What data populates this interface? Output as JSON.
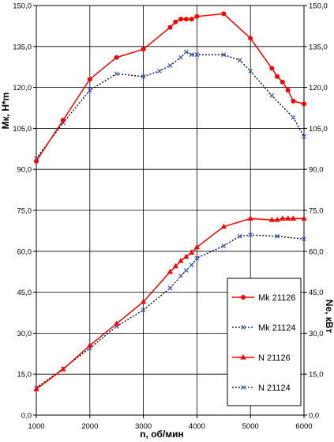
{
  "chart_data": {
    "type": "line",
    "xlabel": "n, об/мин",
    "ylabel_left": "Mк, Н*m",
    "ylabel_right": "Ne, кВт",
    "xlim": [
      1000,
      6000
    ],
    "ylim": [
      0,
      150
    ],
    "x_ticks": [
      "1000",
      "2000",
      "3000",
      "4000",
      "5000",
      "6000"
    ],
    "y_ticks": [
      "0,0",
      "15,0",
      "30,0",
      "45,0",
      "60,0",
      "75,0",
      "90,0",
      "105,0",
      "120,0",
      "135,0",
      "150,0"
    ],
    "grid": true,
    "legend_position": "bottom-right",
    "series": [
      {
        "name": "Mk 21126",
        "color": "#ff0000",
        "line": "solid",
        "marker": "circle",
        "x": [
          1000,
          1500,
          2000,
          2500,
          3000,
          3500,
          3600,
          3700,
          3800,
          3900,
          4000,
          4500,
          5000,
          5400,
          5500,
          5600,
          5700,
          5800,
          6000
        ],
        "y": [
          93,
          108,
          123,
          131,
          134,
          142,
          144,
          145,
          145,
          145,
          146,
          147,
          138,
          127,
          124,
          122,
          119,
          115,
          114
        ]
      },
      {
        "name": "Mk 21124",
        "color": "#3355cc",
        "line": "dotted",
        "marker": "x",
        "x": [
          1000,
          1500,
          2000,
          2500,
          3000,
          3300,
          3500,
          3700,
          3800,
          3900,
          4000,
          4500,
          4800,
          5000,
          5400,
          5800,
          6000
        ],
        "y": [
          94,
          107,
          119,
          125,
          124,
          126,
          128,
          131,
          133,
          132,
          132,
          132,
          130,
          126,
          117,
          109,
          102
        ]
      },
      {
        "name": "N 21126",
        "color": "#ff0000",
        "line": "solid",
        "marker": "triangle",
        "x": [
          1000,
          1500,
          2000,
          2500,
          3000,
          3500,
          3600,
          3700,
          3800,
          3900,
          4000,
          4500,
          5000,
          5400,
          5500,
          5600,
          5700,
          5800,
          6000
        ],
        "y": [
          9.5,
          16.8,
          25.5,
          33.5,
          41.5,
          52.5,
          54.5,
          56.5,
          58,
          59.5,
          61.5,
          69,
          72,
          71.5,
          71.5,
          72,
          72,
          72,
          72
        ]
      },
      {
        "name": "N 21124",
        "color": "#3355cc",
        "line": "dotted",
        "marker": "x",
        "x": [
          1000,
          1500,
          2000,
          2500,
          3000,
          3500,
          3700,
          3800,
          3900,
          4000,
          4500,
          4800,
          5000,
          5500,
          6000
        ],
        "y": [
          10,
          17,
          24.5,
          32.5,
          38.5,
          46.5,
          51,
          53,
          55,
          57.5,
          62,
          65.5,
          66,
          65.5,
          64.5
        ]
      }
    ]
  }
}
